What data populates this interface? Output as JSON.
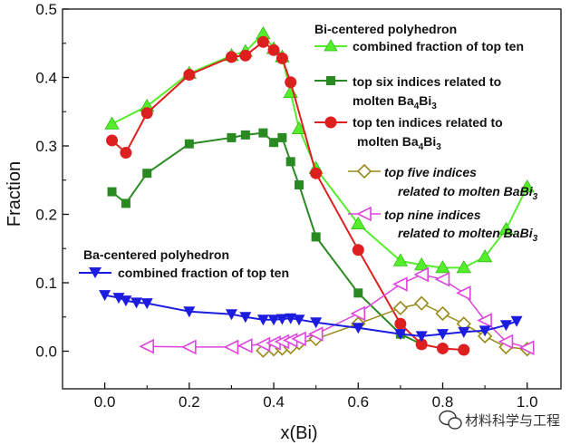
{
  "chart_data": {
    "type": "line",
    "xlabel": "x(Bi)",
    "ylabel": "Fraction",
    "xlim": [
      -0.1,
      1.08
    ],
    "ylim": [
      -0.055,
      0.5
    ],
    "xticks": [
      "0.0",
      "0.2",
      "0.4",
      "0.6",
      "0.8",
      "1.0"
    ],
    "yticks": [
      "0.0",
      "0.1",
      "0.2",
      "0.3",
      "0.4",
      "0.5"
    ],
    "grid": false,
    "legend": {
      "heading_bi": "Bi-centered polyhedron",
      "heading_ba": "Ba-centered polyhedron"
    },
    "series": [
      {
        "key": "bi_combined",
        "name": "combined fraction of top ten",
        "color": "#55ee2a",
        "marker": "triangle-up",
        "x": [
          0.017,
          0.1,
          0.2,
          0.3,
          0.333,
          0.375,
          0.4,
          0.42,
          0.44,
          0.46,
          0.5,
          0.6,
          0.7,
          0.75,
          0.8,
          0.85,
          0.9,
          0.95,
          1.0
        ],
        "y": [
          0.332,
          0.358,
          0.406,
          0.432,
          0.438,
          0.464,
          0.442,
          0.43,
          0.378,
          0.325,
          0.267,
          0.186,
          0.132,
          0.126,
          0.122,
          0.122,
          0.138,
          0.178,
          0.24
        ]
      },
      {
        "key": "bi_six",
        "name_lines": [
          "top six indices related to",
          "molten Ba",
          "4",
          "Bi",
          "3"
        ],
        "color": "#2a8a22",
        "marker": "square",
        "x": [
          0.017,
          0.05,
          0.1,
          0.2,
          0.3,
          0.333,
          0.375,
          0.4,
          0.42,
          0.44,
          0.46,
          0.5,
          0.6,
          0.7,
          0.75
        ],
        "y": [
          0.233,
          0.216,
          0.26,
          0.303,
          0.312,
          0.316,
          0.319,
          0.305,
          0.312,
          0.277,
          0.243,
          0.167,
          0.085,
          0.025,
          0.01
        ]
      },
      {
        "key": "bi_ten",
        "name_lines": [
          "top ten indices related to",
          "molten Ba",
          "4",
          "Bi",
          "3"
        ],
        "color": "#dd1f1f",
        "marker": "circle",
        "x": [
          0.017,
          0.05,
          0.1,
          0.2,
          0.3,
          0.333,
          0.375,
          0.4,
          0.42,
          0.44,
          0.5,
          0.6,
          0.7,
          0.75,
          0.8,
          0.85
        ],
        "y": [
          0.308,
          0.29,
          0.348,
          0.404,
          0.43,
          0.432,
          0.452,
          0.44,
          0.428,
          0.393,
          0.26,
          0.148,
          0.04,
          0.01,
          0.004,
          0.002
        ]
      },
      {
        "key": "ba_five",
        "name_lines": [
          "top five indices",
          "related to molten BaBi",
          "3"
        ],
        "color": "#9a8a1a",
        "marker": "diamond-open",
        "x": [
          0.375,
          0.4,
          0.42,
          0.44,
          0.46,
          0.5,
          0.6,
          0.7,
          0.75,
          0.8,
          0.85,
          0.9,
          0.95,
          1.0
        ],
        "y": [
          0.001,
          0.003,
          0.004,
          0.006,
          0.012,
          0.018,
          0.04,
          0.063,
          0.07,
          0.055,
          0.04,
          0.022,
          0.006,
          0.003
        ]
      },
      {
        "key": "ba_nine",
        "name_lines": [
          "top nine indices",
          "related to molten BaBi",
          "3"
        ],
        "color": "#dd44dd",
        "marker": "triangle-left-open",
        "x": [
          0.1,
          0.2,
          0.3,
          0.333,
          0.375,
          0.4,
          0.42,
          0.44,
          0.46,
          0.5,
          0.6,
          0.7,
          0.75,
          0.8,
          0.85,
          0.9,
          0.95,
          1.0
        ],
        "y": [
          0.007,
          0.006,
          0.006,
          0.008,
          0.01,
          0.012,
          0.014,
          0.016,
          0.018,
          0.025,
          0.055,
          0.098,
          0.112,
          0.105,
          0.085,
          0.045,
          0.014,
          0.005
        ]
      },
      {
        "key": "ba_combined",
        "name": "combined fraction of top ten",
        "color": "#1c1ce0",
        "marker": "triangle-down",
        "x": [
          0.0,
          0.033,
          0.05,
          0.075,
          0.1,
          0.2,
          0.3,
          0.333,
          0.375,
          0.4,
          0.42,
          0.44,
          0.46,
          0.5,
          0.6,
          0.7,
          0.75,
          0.8,
          0.85,
          0.9,
          0.95,
          0.975
        ],
        "y": [
          0.082,
          0.078,
          0.074,
          0.071,
          0.07,
          0.058,
          0.054,
          0.05,
          0.046,
          0.046,
          0.047,
          0.048,
          0.046,
          0.042,
          0.034,
          0.025,
          0.022,
          0.025,
          0.028,
          0.03,
          0.038,
          0.044
        ]
      }
    ]
  },
  "watermark": {
    "text": "材料科学与工程"
  }
}
